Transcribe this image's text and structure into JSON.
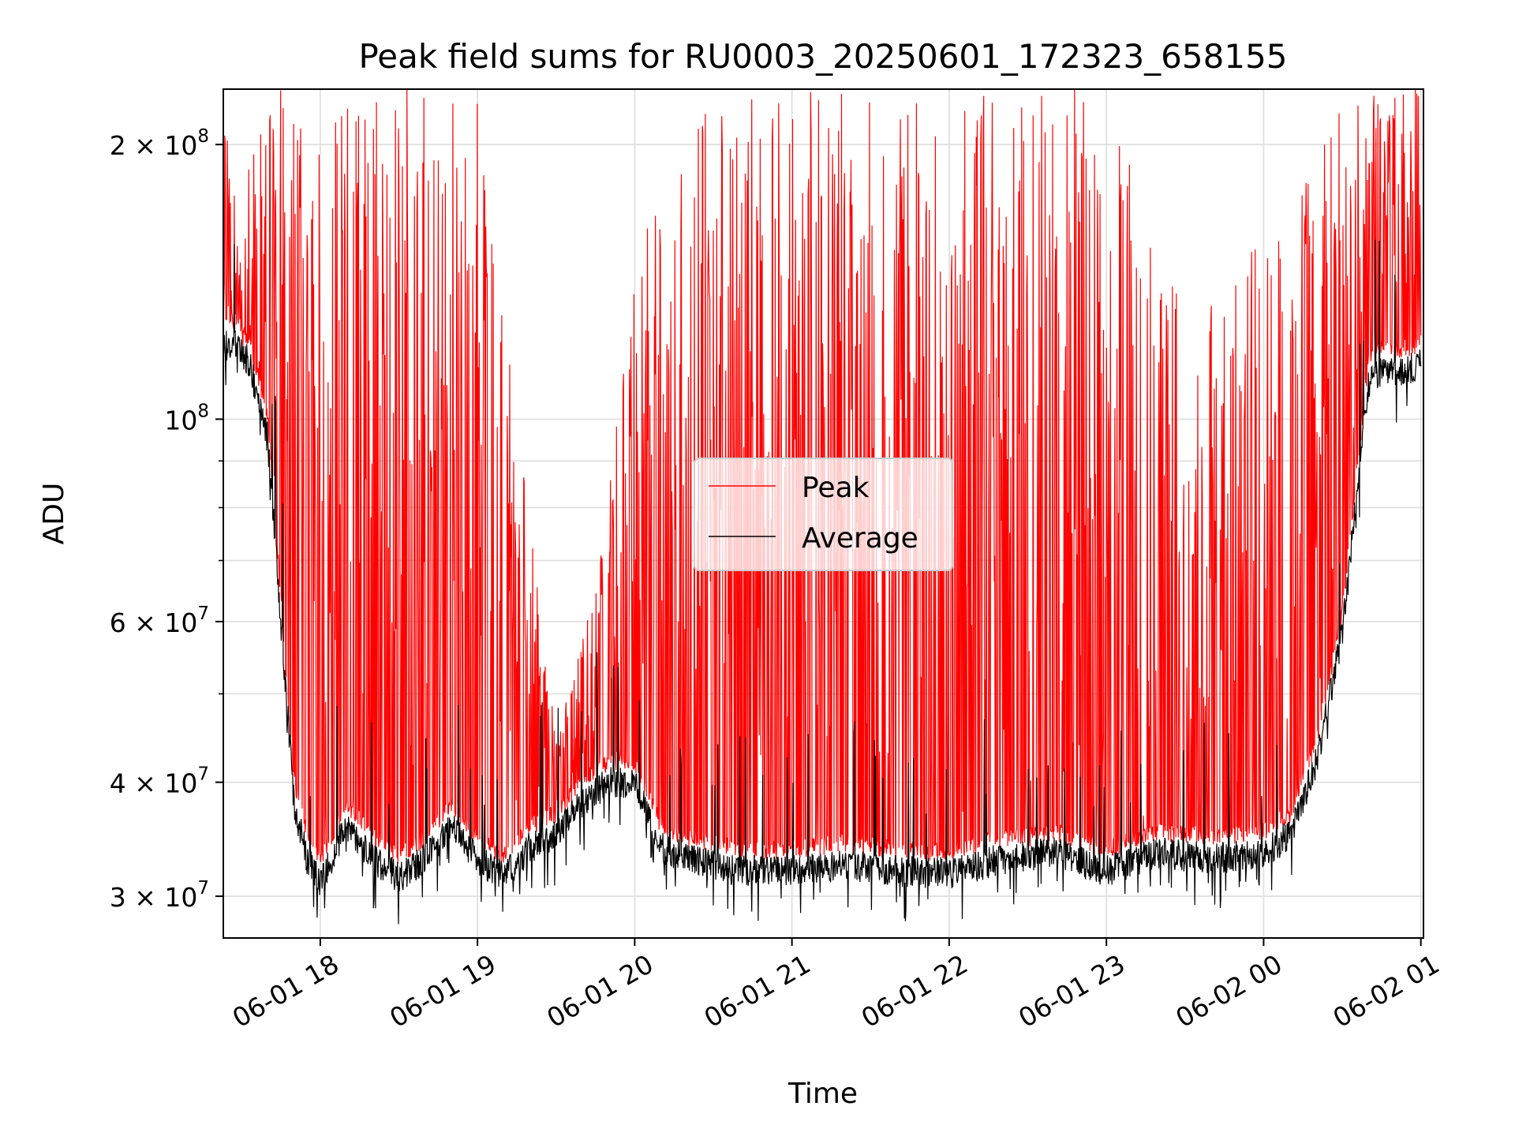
{
  "chart_data": {
    "type": "line",
    "title": "Peak field sums for RU0003_20250601_172323_658155",
    "xlabel": "Time",
    "ylabel": "ADU",
    "yscale": "log",
    "ylim": [
      27000000,
      230000000
    ],
    "xlim": [
      "2025-06-01 17:23",
      "2025-06-02 01:01"
    ],
    "grid": true,
    "legend_position": "center",
    "x_ticks": [
      {
        "value": "2025-06-01 18:00",
        "label": "06-01 18"
      },
      {
        "value": "2025-06-01 19:00",
        "label": "06-01 19"
      },
      {
        "value": "2025-06-01 20:00",
        "label": "06-01 20"
      },
      {
        "value": "2025-06-01 21:00",
        "label": "06-01 21"
      },
      {
        "value": "2025-06-01 22:00",
        "label": "06-01 22"
      },
      {
        "value": "2025-06-01 23:00",
        "label": "06-01 23"
      },
      {
        "value": "2025-06-02 00:00",
        "label": "06-02 00"
      },
      {
        "value": "2025-06-02 01:00",
        "label": "06-02 01"
      }
    ],
    "y_ticks": [
      {
        "value": 30000000,
        "label": "3 × 10",
        "exp": "7"
      },
      {
        "value": 40000000,
        "label": "4 × 10",
        "exp": "7"
      },
      {
        "value": 60000000,
        "label": "6 × 10",
        "exp": "7"
      },
      {
        "value": 100000000,
        "label": "10",
        "exp": "8"
      },
      {
        "value": 200000000,
        "label": "2 × 10",
        "exp": "8"
      }
    ],
    "y_minor_ticks": [
      50000000,
      70000000,
      80000000,
      90000000
    ],
    "series": [
      {
        "name": "Peak",
        "color": "#ff0000",
        "x": [
          "2025-06-01 17:23",
          "2025-06-01 17:30",
          "2025-06-01 17:35",
          "2025-06-01 17:40",
          "2025-06-01 17:45",
          "2025-06-01 17:50",
          "2025-06-01 18:00",
          "2025-06-01 18:15",
          "2025-06-01 18:30",
          "2025-06-01 18:45",
          "2025-06-01 19:00",
          "2025-06-01 19:15",
          "2025-06-01 19:30",
          "2025-06-01 19:45",
          "2025-06-01 20:00",
          "2025-06-01 20:15",
          "2025-06-01 20:30",
          "2025-06-01 21:00",
          "2025-06-01 21:30",
          "2025-06-01 22:00",
          "2025-06-01 22:30",
          "2025-06-01 23:00",
          "2025-06-01 23:30",
          "2025-06-02 00:00",
          "2025-06-02 00:15",
          "2025-06-02 00:30",
          "2025-06-02 00:45",
          "2025-06-02 01:00"
        ],
        "y": [
          230000000,
          150000000,
          230000000,
          230000000,
          230000000,
          230000000,
          230000000,
          230000000,
          230000000,
          230000000,
          230000000,
          100000000,
          45000000,
          65000000,
          150000000,
          190000000,
          230000000,
          230000000,
          230000000,
          230000000,
          230000000,
          230000000,
          130000000,
          160000000,
          180000000,
          230000000,
          230000000,
          230000000
        ]
      },
      {
        "name": "Average",
        "color": "#000000",
        "x": [
          "2025-06-01 17:23",
          "2025-06-01 17:28",
          "2025-06-01 17:33",
          "2025-06-01 17:40",
          "2025-06-01 17:45",
          "2025-06-01 17:50",
          "2025-06-01 17:55",
          "2025-06-01 18:00",
          "2025-06-01 18:10",
          "2025-06-01 18:20",
          "2025-06-01 18:30",
          "2025-06-01 18:40",
          "2025-06-01 18:50",
          "2025-06-01 19:00",
          "2025-06-01 19:10",
          "2025-06-01 19:20",
          "2025-06-01 19:30",
          "2025-06-01 19:40",
          "2025-06-01 19:50",
          "2025-06-01 20:00",
          "2025-06-01 20:10",
          "2025-06-01 20:20",
          "2025-06-01 20:40",
          "2025-06-01 21:00",
          "2025-06-01 21:20",
          "2025-06-01 21:40",
          "2025-06-01 22:00",
          "2025-06-01 22:20",
          "2025-06-01 22:40",
          "2025-06-01 23:00",
          "2025-06-01 23:20",
          "2025-06-01 23:40",
          "2025-06-02 00:00",
          "2025-06-02 00:10",
          "2025-06-02 00:20",
          "2025-06-02 00:30",
          "2025-06-02 00:40",
          "2025-06-02 00:45",
          "2025-06-02 00:50",
          "2025-06-02 01:00"
        ],
        "y": [
          120000000,
          122000000,
          115000000,
          95000000,
          60000000,
          38000000,
          33000000,
          31000000,
          36000000,
          33000000,
          31500000,
          33000000,
          36000000,
          33000000,
          31500000,
          34000000,
          35000000,
          38000000,
          40000000,
          40000000,
          34000000,
          33000000,
          32000000,
          32000000,
          32500000,
          32000000,
          31800000,
          33000000,
          33500000,
          32000000,
          33500000,
          33000000,
          33500000,
          35000000,
          42000000,
          58000000,
          110000000,
          113000000,
          112000000,
          115000000
        ]
      }
    ]
  }
}
